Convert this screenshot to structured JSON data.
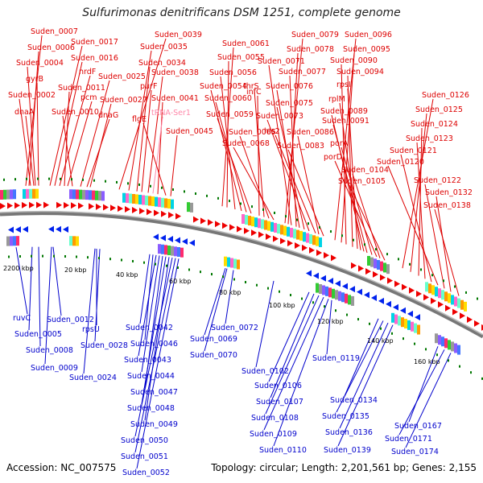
{
  "title": "Sulfurimonas denitrificans DSM 1251, complete genome",
  "footer": {
    "accession": "Accession: NC_007575",
    "summary": "Topology: circular; Length: 2,201,561 bp; Genes: 2,155"
  },
  "colors": {
    "forward_label": "#dd0000",
    "reverse_label": "#0000cc",
    "rna_label": "#ff88aa",
    "backbone": "#888888",
    "tick": "#007700"
  },
  "top_labels": [
    "Suden_0007",
    "Suden_0006",
    "Suden_0004",
    "gyrB",
    "Suden_0002",
    "dnaA",
    "Suden_0017",
    "Suden_0016",
    "nrdF",
    "Suden_0011",
    "pcm",
    "Suden_0010",
    "Suden_0025",
    "Suden_0027",
    "dnaG",
    "Suden_0039",
    "Suden_0035",
    "Suden_0034",
    "purF",
    "Suden_0038",
    "Suden_0041",
    "tRNA-Ser1",
    "flgE",
    "Suden_0045",
    "Suden_0061",
    "Suden_0055",
    "Suden_0056",
    "Suden_0054",
    "Suden_0060",
    "Suden_0059",
    "infC",
    "thrS",
    "Suden_0065",
    "Suden_0068",
    "Suden_0079",
    "Suden_0078",
    "Suden_0071",
    "Suden_0077",
    "Suden_0076",
    "Suden_0075",
    "Suden_0073",
    "his2",
    "Suden_0086",
    "Suden_0083",
    "Suden_0096",
    "Suden_0095",
    "Suden_0090",
    "Suden_0094",
    "rpsI",
    "rplM",
    "Suden_0089",
    "Suden_0091",
    "porA",
    "porD",
    "Suden_0104",
    "Suden_0105",
    "Suden_0126",
    "Suden_0125",
    "Suden_0124",
    "Suden_0123",
    "Suden_0121",
    "Suden_0120",
    "Suden_0122",
    "Suden_0132",
    "Suden_0138"
  ],
  "bottom_labels": [
    "ruvC",
    "Suden_0005",
    "Suden_0008",
    "Suden_0009",
    "Suden_0012",
    "rpsU",
    "Suden_0028",
    "Suden_0024",
    "Suden_0042",
    "Suden_0046",
    "Suden_0043",
    "Suden_0044",
    "Suden_0047",
    "Suden_0048",
    "Suden_0049",
    "Suden_0050",
    "Suden_0051",
    "Suden_0052",
    "Suden_0072",
    "Suden_0069",
    "Suden_0070",
    "Suden_0102",
    "Suden_0106",
    "Suden_0107",
    "Suden_0108",
    "Suden_0109",
    "Suden_0110",
    "Suden_0119",
    "Suden_0134",
    "Suden_0135",
    "Suden_0136",
    "Suden_0139",
    "Suden_0167",
    "Suden_0171",
    "Suden_0174"
  ],
  "kbp_labels": [
    "2200 kbp",
    "20 kbp",
    "40 kbp",
    "60 kbp",
    "80 kbp",
    "100 kbp",
    "120 kbp",
    "140 kbp",
    "160 kbp"
  ]
}
